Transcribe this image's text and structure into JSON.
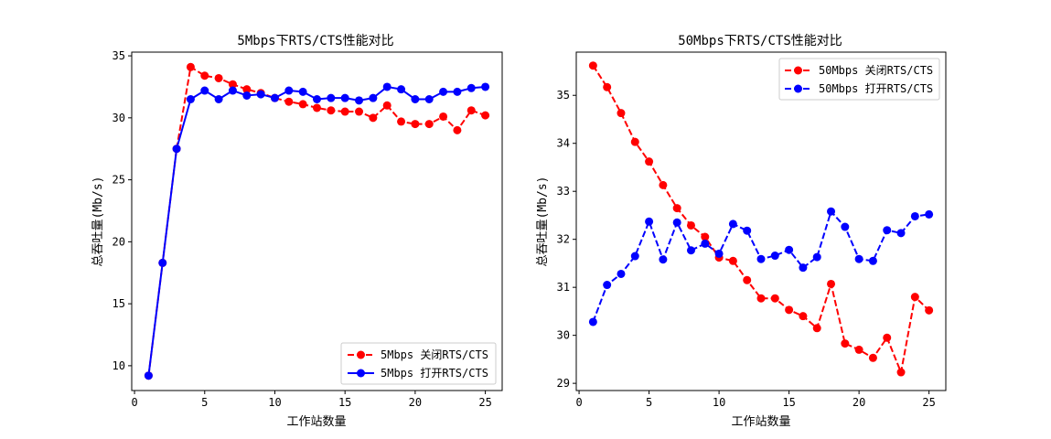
{
  "chart_data": [
    {
      "type": "line",
      "title": "5Mbps下RTS/CTS性能对比",
      "xlabel": "工作站数量",
      "ylabel": "总吞吐量(Mb/s)",
      "xlim": [
        -0.2,
        26.2
      ],
      "ylim": [
        8.0,
        35.3
      ],
      "xticks": [
        0,
        5,
        10,
        15,
        20,
        25
      ],
      "yticks": [
        10,
        15,
        20,
        25,
        30,
        35
      ],
      "legend_position": "lower-right",
      "x": [
        1,
        2,
        3,
        4,
        5,
        6,
        7,
        8,
        9,
        10,
        11,
        12,
        13,
        14,
        15,
        16,
        17,
        18,
        19,
        20,
        21,
        22,
        23,
        24,
        25
      ],
      "series": [
        {
          "name": "5Mbps 关闭RTS/CTS",
          "color": "#ff0000",
          "linestyle": "dashed",
          "values": [
            9.2,
            18.3,
            27.5,
            34.1,
            33.4,
            33.2,
            32.7,
            32.3,
            32.0,
            31.6,
            31.3,
            31.1,
            30.8,
            30.6,
            30.5,
            30.5,
            30.0,
            31.0,
            29.7,
            29.5,
            29.5,
            30.1,
            29.0,
            30.6,
            30.2
          ]
        },
        {
          "name": "5Mbps 打开RTS/CTS",
          "color": "#0000ff",
          "linestyle": "solid",
          "values": [
            9.2,
            18.3,
            27.5,
            31.5,
            32.2,
            31.5,
            32.2,
            31.8,
            31.9,
            31.6,
            32.2,
            32.1,
            31.5,
            31.6,
            31.6,
            31.4,
            31.6,
            32.5,
            32.3,
            31.5,
            31.5,
            32.1,
            32.1,
            32.4,
            32.5
          ]
        }
      ]
    },
    {
      "type": "line",
      "title": "50Mbps下RTS/CTS性能对比",
      "xlabel": "工作站数量",
      "ylabel": "总吞吐量(Mb/s)",
      "xlim": [
        -0.2,
        26.2
      ],
      "ylim": [
        28.85,
        35.9
      ],
      "xticks": [
        0,
        5,
        10,
        15,
        20,
        25
      ],
      "yticks": [
        29,
        30,
        31,
        32,
        33,
        34,
        35
      ],
      "legend_position": "upper-right",
      "x": [
        1,
        2,
        3,
        4,
        5,
        6,
        7,
        8,
        9,
        10,
        11,
        12,
        13,
        14,
        15,
        16,
        17,
        18,
        19,
        20,
        21,
        22,
        23,
        24,
        25
      ],
      "series": [
        {
          "name": "50Mbps 关闭RTS/CTS",
          "color": "#ff0000",
          "linestyle": "dashed",
          "values": [
            35.62,
            35.17,
            34.63,
            34.03,
            33.62,
            33.13,
            32.65,
            32.29,
            32.05,
            31.62,
            31.55,
            31.15,
            30.77,
            30.77,
            30.53,
            30.4,
            30.15,
            31.07,
            29.83,
            29.7,
            29.53,
            29.95,
            29.23,
            30.8,
            30.52
          ]
        },
        {
          "name": "50Mbps 打开RTS/CTS",
          "color": "#0000ff",
          "linestyle": "dashed",
          "values": [
            30.28,
            31.05,
            31.28,
            31.65,
            32.37,
            31.58,
            32.35,
            31.77,
            31.91,
            31.7,
            32.32,
            32.18,
            31.59,
            31.66,
            31.78,
            31.41,
            31.63,
            32.58,
            32.26,
            31.59,
            31.55,
            32.19,
            32.13,
            32.48,
            32.52
          ]
        }
      ]
    }
  ]
}
